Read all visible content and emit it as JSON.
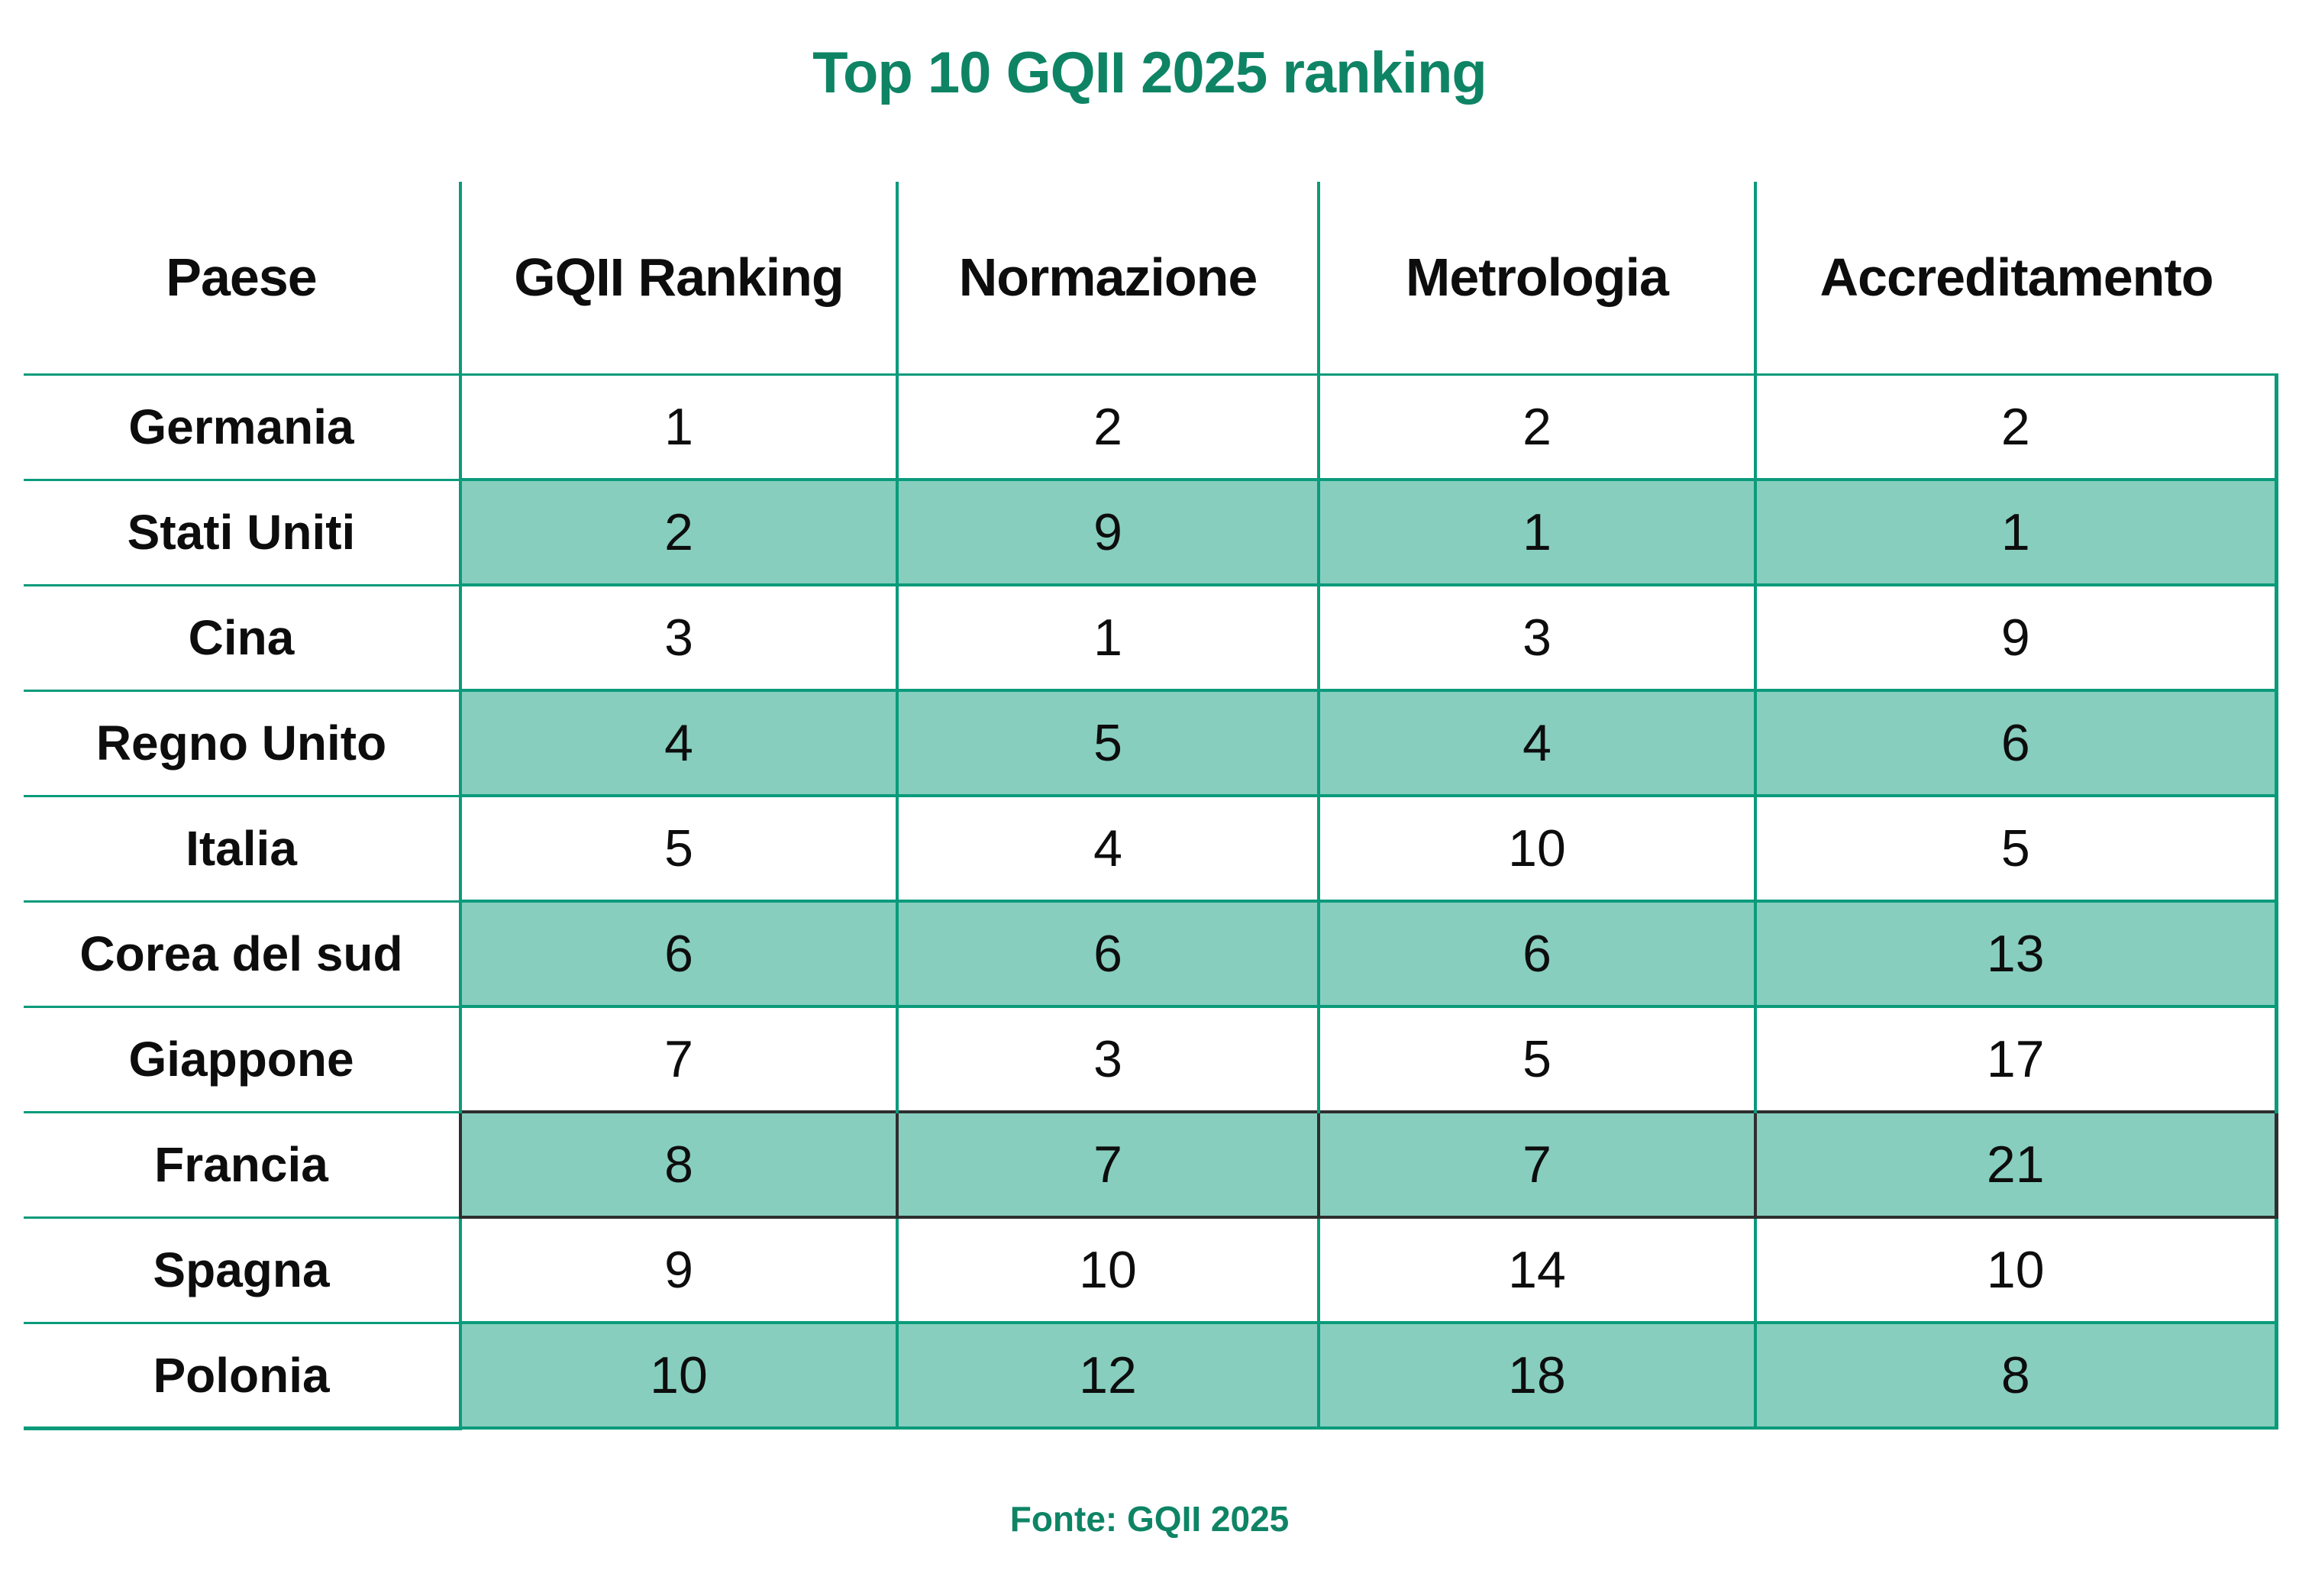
{
  "chart_data": {
    "type": "table",
    "title": "Top 10 GQII 2025 ranking",
    "source_note": "Fonte: GQII 2025",
    "columns": [
      "Paese",
      "GQII Ranking",
      "Normazione",
      "Metrologia",
      "Accreditamento"
    ],
    "rows": [
      {
        "country": "Germania",
        "values": [
          1,
          2,
          2,
          2
        ],
        "shaded": false,
        "selected": false
      },
      {
        "country": "Stati Uniti",
        "values": [
          2,
          9,
          1,
          1
        ],
        "shaded": true,
        "selected": false
      },
      {
        "country": "Cina",
        "values": [
          3,
          1,
          3,
          9
        ],
        "shaded": false,
        "selected": false
      },
      {
        "country": "Regno Unito",
        "values": [
          4,
          5,
          4,
          6
        ],
        "shaded": true,
        "selected": false
      },
      {
        "country": "Italia",
        "values": [
          5,
          4,
          10,
          5
        ],
        "shaded": false,
        "selected": false
      },
      {
        "country": "Corea del sud",
        "values": [
          6,
          6,
          6,
          13
        ],
        "shaded": true,
        "selected": false
      },
      {
        "country": "Giappone",
        "values": [
          7,
          3,
          5,
          17
        ],
        "shaded": false,
        "selected": false
      },
      {
        "country": "Francia",
        "values": [
          8,
          7,
          7,
          21
        ],
        "shaded": true,
        "selected": true
      },
      {
        "country": "Spagna",
        "values": [
          9,
          10,
          14,
          10
        ],
        "shaded": false,
        "selected": false
      },
      {
        "country": "Polonia",
        "values": [
          10,
          12,
          18,
          8
        ],
        "shaded": true,
        "selected": false
      }
    ],
    "layout": {
      "grid": "on",
      "legend": "none",
      "first_column_role": "row-header"
    }
  },
  "colors": {
    "grid_green": "#0a9b7b",
    "shaded_row_fill": "#87cebf",
    "heading_green": "#0e8465",
    "selected_outline": "#2e2e2e",
    "text_black": "#0d0d0d"
  }
}
